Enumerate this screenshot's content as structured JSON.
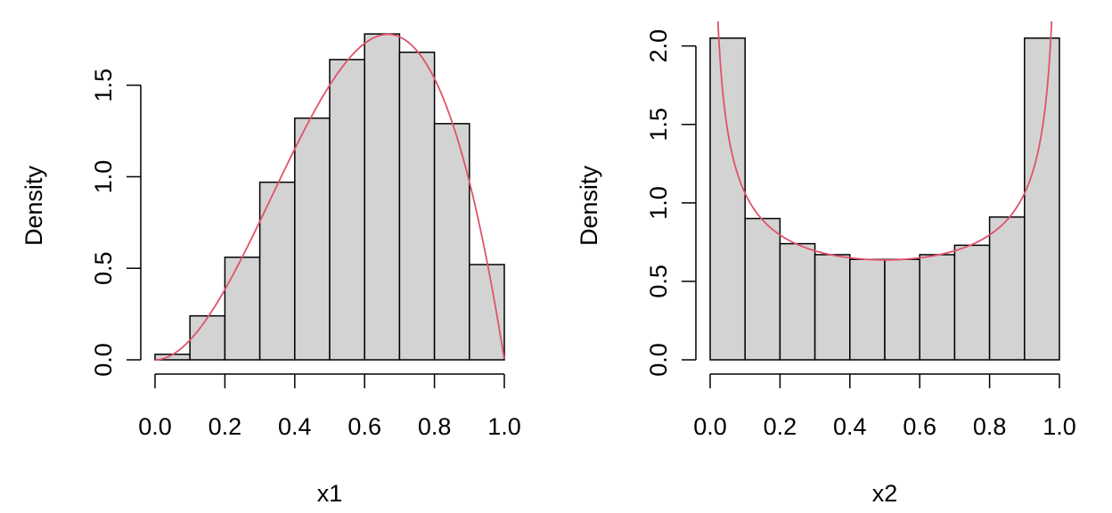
{
  "chart_data": [
    {
      "type": "histogram",
      "xlabel": "x1",
      "ylabel": "Density",
      "xlim": [
        0,
        1
      ],
      "ylim": [
        0,
        1.8
      ],
      "xticks": [
        0.0,
        0.2,
        0.4,
        0.6,
        0.8,
        1.0
      ],
      "xtick_labels": [
        "0.0",
        "0.2",
        "0.4",
        "0.6",
        "0.8",
        "1.0"
      ],
      "yticks": [
        0.0,
        0.5,
        1.0,
        1.5
      ],
      "ytick_labels": [
        "0.0",
        "0.5",
        "1.0",
        "1.5"
      ],
      "bins": [
        0.0,
        0.1,
        0.2,
        0.3,
        0.4,
        0.5,
        0.6,
        0.7,
        0.8,
        0.9,
        1.0
      ],
      "values": [
        0.03,
        0.24,
        0.56,
        0.97,
        1.32,
        1.64,
        1.78,
        1.68,
        1.29,
        0.52
      ],
      "curve": {
        "kind": "beta-density",
        "alpha": 3,
        "beta": 2,
        "color": "#df536b"
      },
      "bar_fill": "#d3d3d3",
      "bar_stroke": "#000000",
      "grid": false
    },
    {
      "type": "histogram",
      "xlabel": "x2",
      "ylabel": "Density",
      "xlim": [
        0,
        1
      ],
      "ylim": [
        0,
        2.1
      ],
      "xticks": [
        0.0,
        0.2,
        0.4,
        0.6,
        0.8,
        1.0
      ],
      "xtick_labels": [
        "0.0",
        "0.2",
        "0.4",
        "0.6",
        "0.8",
        "1.0"
      ],
      "yticks": [
        0.0,
        0.5,
        1.0,
        1.5,
        2.0
      ],
      "ytick_labels": [
        "0.0",
        "0.5",
        "1.0",
        "1.5",
        "2.0"
      ],
      "bins": [
        0.0,
        0.1,
        0.2,
        0.3,
        0.4,
        0.5,
        0.6,
        0.7,
        0.8,
        0.9,
        1.0
      ],
      "values": [
        2.05,
        0.9,
        0.74,
        0.67,
        0.64,
        0.64,
        0.67,
        0.73,
        0.91,
        2.05
      ],
      "curve": {
        "kind": "beta-density",
        "alpha": 0.5,
        "beta": 0.5,
        "color": "#df536b"
      },
      "bar_fill": "#d3d3d3",
      "bar_stroke": "#000000",
      "grid": false
    }
  ]
}
